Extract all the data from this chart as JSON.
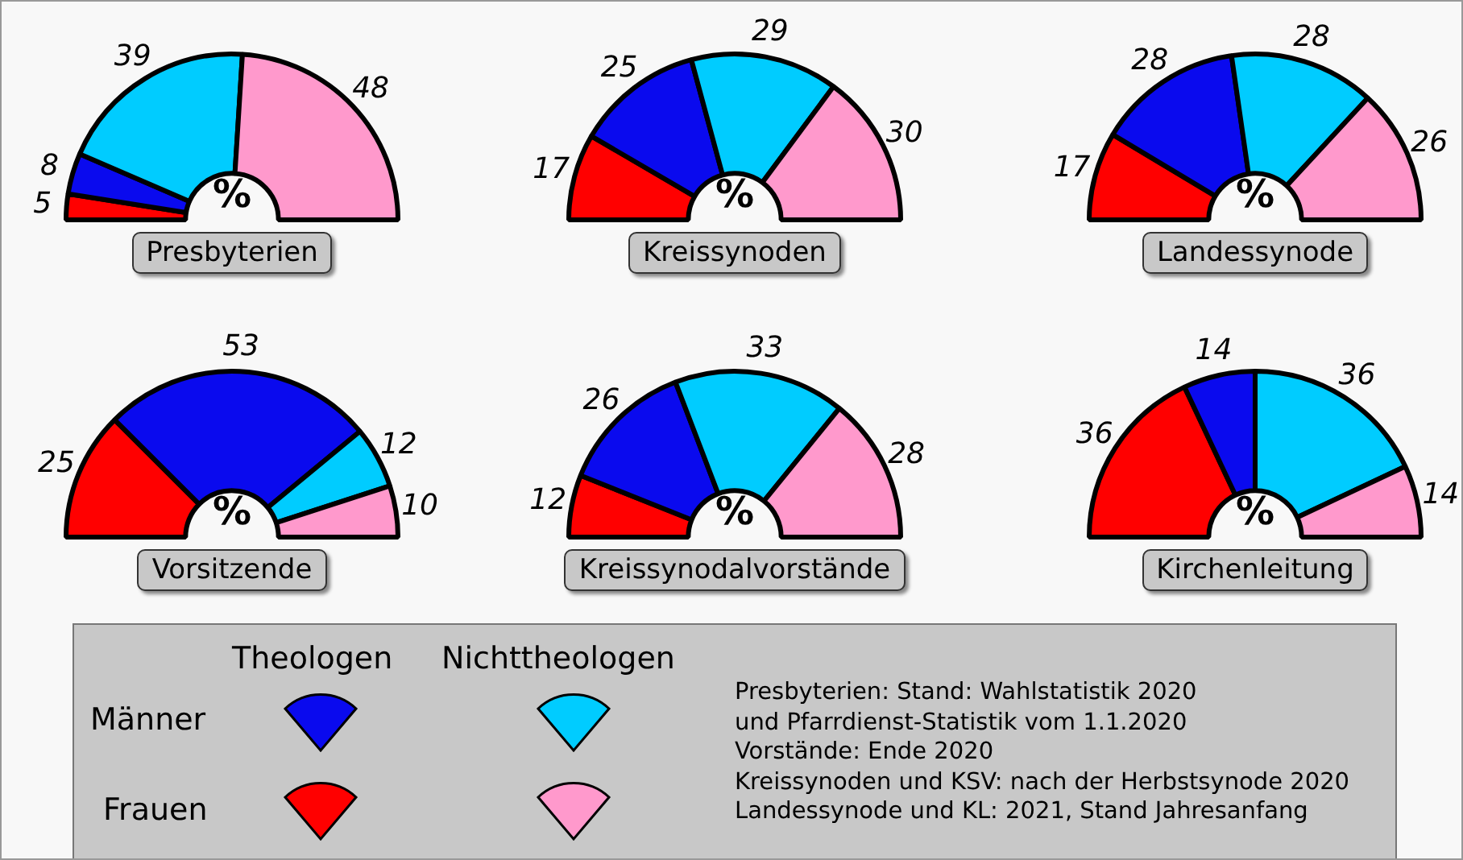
{
  "chart_data": [
    {
      "type": "donut",
      "title": "Presbyterien",
      "categories": [
        null,
        null,
        null,
        null
      ],
      "values": [
        5,
        8,
        39,
        48
      ],
      "colors": [
        "#ff0000",
        "#0a0aee",
        "#00ccff",
        "#ff99cc"
      ],
      "data_labels": true,
      "annotations": [
        "%"
      ]
    },
    {
      "type": "donut",
      "title": "Kreissynoden",
      "categories": [
        null,
        null,
        null,
        null
      ],
      "values": [
        17,
        25,
        29,
        30
      ],
      "colors": [
        "#ff0000",
        "#0a0aee",
        "#00ccff",
        "#ff99cc"
      ],
      "data_labels": true,
      "annotations": [
        "%"
      ]
    },
    {
      "type": "donut",
      "title": "Landessynode",
      "categories": [
        null,
        null,
        null,
        null
      ],
      "values": [
        17,
        28,
        28,
        26
      ],
      "colors": [
        "#ff0000",
        "#0a0aee",
        "#00ccff",
        "#ff99cc"
      ],
      "data_labels": true,
      "annotations": [
        "%"
      ]
    },
    {
      "type": "donut",
      "title": "Vorsitzende",
      "categories": [
        null,
        null,
        null,
        null
      ],
      "values": [
        25,
        53,
        12,
        10
      ],
      "colors": [
        "#ff0000",
        "#0a0aee",
        "#00ccff",
        "#ff99cc"
      ],
      "data_labels": true,
      "annotations": [
        "%"
      ]
    },
    {
      "type": "donut",
      "title": "Kreissynodalvorstände",
      "categories": [
        null,
        null,
        null,
        null
      ],
      "values": [
        12,
        26,
        33,
        28
      ],
      "colors": [
        "#ff0000",
        "#0a0aee",
        "#00ccff",
        "#ff99cc"
      ],
      "data_labels": true,
      "annotations": [
        "%"
      ]
    },
    {
      "type": "donut",
      "title": "Kirchenleitung",
      "categories": [
        null,
        null,
        null,
        null
      ],
      "values": [
        36,
        14,
        36,
        14
      ],
      "colors": [
        "#ff0000",
        "#0a0aee",
        "#00ccff",
        "#ff99cc"
      ],
      "data_labels": true,
      "annotations": [
        "%"
      ]
    },
    {
      "type": "other",
      "annotations": [
        "Theologen",
        "Nichttheologen",
        "Männer",
        "Frauen",
        "Presbyterien: Stand: Wahlstatistik 2020",
        "und Pfarrdienst-Statistik vom 1.1.2020",
        "Vorstände: Ende 2020",
        "Kreissynoden und KSV: nach der Herbstsynode 2020",
        "Landessynode und KL: 2021, Stand Jahresanfang"
      ]
    }
  ]
}
